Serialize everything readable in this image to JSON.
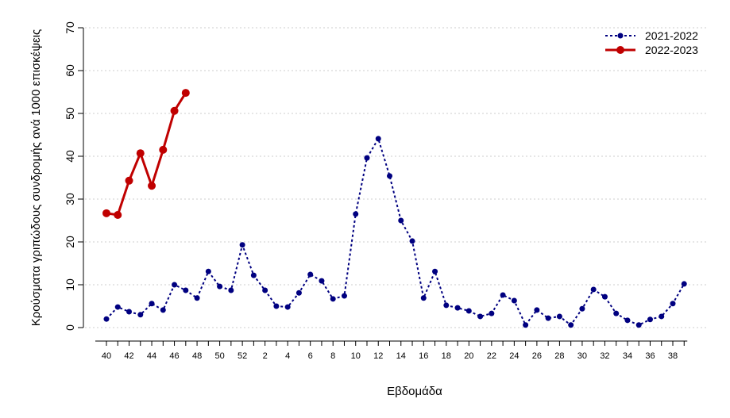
{
  "chart_data": {
    "type": "line",
    "xlabel": "Εβδομάδα",
    "ylabel": "Κρούσματα γριπώδους συνδρομής ανά 1000 επισκέψεις",
    "categories": [
      "40",
      null,
      "42",
      null,
      "44",
      null,
      "46",
      null,
      "48",
      null,
      "50",
      null,
      "52",
      null,
      "2",
      null,
      "4",
      null,
      "6",
      null,
      "8",
      null,
      "10",
      null,
      "12",
      null,
      "14",
      null,
      "16",
      null,
      "18",
      null,
      "20",
      null,
      "22",
      null,
      "24",
      null,
      "26",
      null,
      "28",
      null,
      "30",
      null,
      "32",
      null,
      "34",
      null,
      "36",
      null,
      "38",
      null
    ],
    "series": [
      {
        "name": "2021-2022",
        "color": "#000080",
        "style": "dotted",
        "values": [
          2.0,
          4.8,
          3.7,
          3.0,
          5.6,
          4.1,
          10.0,
          8.7,
          6.9,
          13.1,
          9.6,
          8.7,
          19.3,
          12.2,
          8.7,
          5.0,
          4.8,
          8.1,
          12.4,
          10.9,
          6.7,
          7.4,
          26.5,
          39.6,
          44.1,
          35.4,
          25.0,
          20.2,
          6.9,
          13.1,
          5.2,
          4.6,
          3.9,
          2.6,
          3.3,
          7.6,
          6.3,
          0.6,
          4.1,
          2.2,
          2.6,
          0.6,
          4.4,
          8.9,
          7.2,
          3.3,
          1.7,
          0.6,
          1.9,
          2.6,
          5.6,
          10.2
        ]
      },
      {
        "name": "2022-2023",
        "color": "#c00000",
        "style": "solid",
        "values": [
          26.7,
          26.3,
          34.3,
          40.7,
          33.1,
          41.5,
          50.6,
          54.8,
          null,
          null,
          null,
          null,
          null,
          null,
          null,
          null,
          null,
          null,
          null,
          null,
          null,
          null,
          null,
          null,
          null,
          null,
          null,
          null,
          null,
          null,
          null,
          null,
          null,
          null,
          null,
          null,
          null,
          null,
          null,
          null,
          null,
          null,
          null,
          null,
          null,
          null,
          null,
          null,
          null,
          null,
          null,
          null
        ]
      }
    ],
    "ylim": [
      0,
      70
    ],
    "yticks": [
      0,
      10,
      20,
      30,
      40,
      50,
      60,
      70
    ],
    "grid": true,
    "legend": "top-right"
  }
}
